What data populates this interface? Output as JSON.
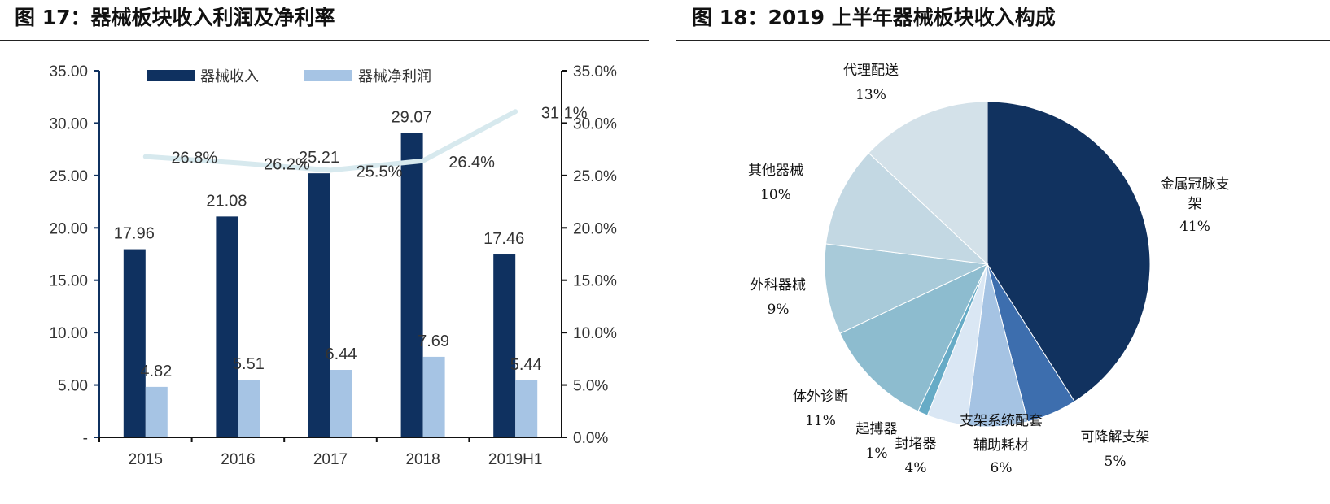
{
  "chart_data": [
    {
      "type": "bar",
      "title": "图 17：器械板块收入利润及净利率",
      "categories": [
        "2015",
        "2016",
        "2017",
        "2018",
        "2019H1"
      ],
      "series": [
        {
          "name": "器械收入",
          "kind": "bar",
          "axis": "left",
          "color": "#0f3160",
          "values": [
            17.96,
            21.08,
            25.21,
            29.07,
            17.46
          ],
          "labels": [
            "17.96",
            "21.08",
            "25.21",
            "29.07",
            "17.46"
          ]
        },
        {
          "name": "器械净利润",
          "kind": "bar",
          "axis": "left",
          "color": "#a6c4e4",
          "values": [
            4.82,
            5.51,
            6.44,
            7.69,
            5.44
          ],
          "labels": [
            "4.82",
            "5.51",
            "6.44",
            "7.69",
            "5.44"
          ]
        },
        {
          "kind": "line",
          "axis": "right",
          "color": "#d7e9ee",
          "values": [
            26.8,
            26.2,
            25.5,
            26.4,
            31.1
          ],
          "labels": [
            "26.8%",
            "26.2%",
            "25.5%",
            "26.4%",
            "31.1%"
          ]
        }
      ],
      "ylim": [
        0,
        35
      ],
      "y_ticks": [
        "-",
        "5.00",
        "10.00",
        "15.00",
        "20.00",
        "25.00",
        "30.00",
        "35.00"
      ],
      "y2lim": [
        0,
        35
      ],
      "y2_ticks": [
        "0.0%",
        "5.0%",
        "10.0%",
        "15.0%",
        "20.0%",
        "25.0%",
        "30.0%",
        "35.0%"
      ],
      "grid": false,
      "legend": "top"
    },
    {
      "type": "pie",
      "title": "图 18：2019 上半年器械板块收入构成",
      "slices": [
        {
          "label": "金属冠脉支架",
          "value": 41,
          "pct": "41%",
          "color": "#11325f"
        },
        {
          "label": "可降解支架",
          "value": 5,
          "pct": "5%",
          "color": "#3d6eae"
        },
        {
          "label": "支架系统配套辅助耗材",
          "value": 6,
          "pct": "6%",
          "color": "#a5c3e3"
        },
        {
          "label": "封堵器",
          "value": 4,
          "pct": "4%",
          "color": "#dae7f4"
        },
        {
          "label": "起搏器",
          "value": 1,
          "pct": "1%",
          "color": "#66abc6"
        },
        {
          "label": "体外诊断",
          "value": 11,
          "pct": "11%",
          "color": "#8dbccf"
        },
        {
          "label": "外科器械",
          "value": 9,
          "pct": "9%",
          "color": "#a8cad9"
        },
        {
          "label": "其他器械",
          "value": 10,
          "pct": "10%",
          "color": "#c3d8e3"
        },
        {
          "label": "代理配送",
          "value": 13,
          "pct": "13%",
          "color": "#d3e1e9"
        }
      ]
    }
  ]
}
